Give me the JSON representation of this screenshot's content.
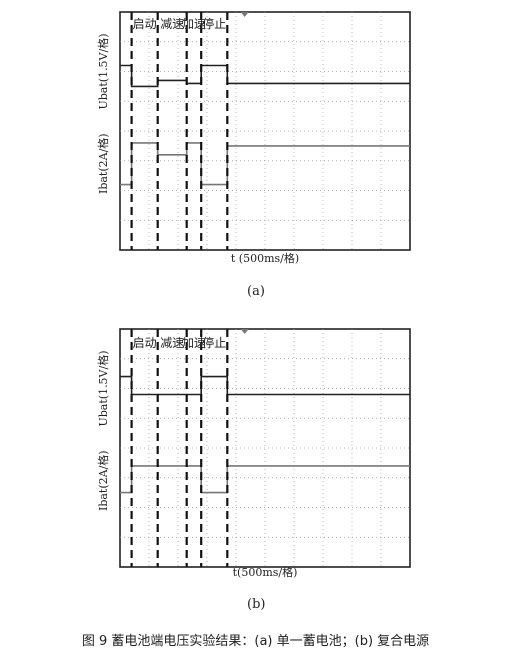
{
  "figure": {
    "caption": "图 9   蓄电池端电压实验结果：(a) 单一蓄电池；(b) 复合电源"
  },
  "panels": [
    {
      "id": "a",
      "sub_label": "(a)",
      "phases": [
        "启动",
        "减速",
        "加速",
        "停止"
      ],
      "x_label": "t (500ms/格)",
      "y_label_top": "Ubat(1.5V/格)",
      "y_label_bottom": "Ibat(2A/格)"
    },
    {
      "id": "b",
      "sub_label": "(b)",
      "phases": [
        "启动",
        "减速",
        "加速",
        "停止"
      ],
      "x_label": "t(500ms/格)",
      "y_label_top": "Ubat(1.5V/格)",
      "y_label_bottom": "Ibat(2A/格)"
    }
  ],
  "chart_data": [
    {
      "type": "line",
      "panel": "a",
      "x_unit": "div",
      "y_unit": "div",
      "xlim": [
        0,
        10
      ],
      "ylim": [
        0,
        8
      ],
      "x_scale": "500ms/div",
      "grid": true,
      "phase_boundaries": [
        0.4,
        1.3,
        2.3,
        2.8,
        3.7
      ],
      "series": [
        {
          "name": "Ubat",
          "scale": "1.5V/div",
          "color": "#222222",
          "x": [
            0,
            0.4,
            0.4,
            1.3,
            1.3,
            2.3,
            2.3,
            2.8,
            2.8,
            3.7,
            3.7,
            10
          ],
          "y": [
            6.2,
            6.2,
            5.5,
            5.5,
            5.7,
            5.7,
            5.6,
            5.6,
            6.2,
            6.2,
            5.6,
            5.6
          ]
        },
        {
          "name": "Ibat",
          "scale": "2A/div",
          "color": "#777777",
          "x": [
            0,
            0.4,
            0.4,
            1.3,
            1.3,
            2.3,
            2.3,
            2.8,
            2.8,
            3.7,
            3.7,
            10
          ],
          "y": [
            2.2,
            2.2,
            3.6,
            3.6,
            3.2,
            3.2,
            3.6,
            3.6,
            2.2,
            2.2,
            3.5,
            3.5
          ]
        }
      ]
    },
    {
      "type": "line",
      "panel": "b",
      "x_unit": "div",
      "y_unit": "div",
      "xlim": [
        0,
        10
      ],
      "ylim": [
        0,
        8
      ],
      "x_scale": "500ms/div",
      "grid": true,
      "phase_boundaries": [
        0.4,
        1.3,
        2.3,
        2.8,
        3.7
      ],
      "series": [
        {
          "name": "Ubat",
          "scale": "1.5V/div",
          "color": "#222222",
          "x": [
            0,
            0.4,
            0.4,
            2.8,
            2.8,
            3.7,
            3.7,
            10
          ],
          "y": [
            6.4,
            6.4,
            5.8,
            5.8,
            6.4,
            6.4,
            5.8,
            5.8
          ]
        },
        {
          "name": "Ibat",
          "scale": "2A/div",
          "color": "#777777",
          "x": [
            0,
            0.4,
            0.4,
            2.8,
            2.8,
            3.7,
            3.7,
            10
          ],
          "y": [
            2.5,
            2.5,
            3.4,
            3.4,
            2.5,
            2.5,
            3.4,
            3.4
          ]
        }
      ]
    }
  ]
}
